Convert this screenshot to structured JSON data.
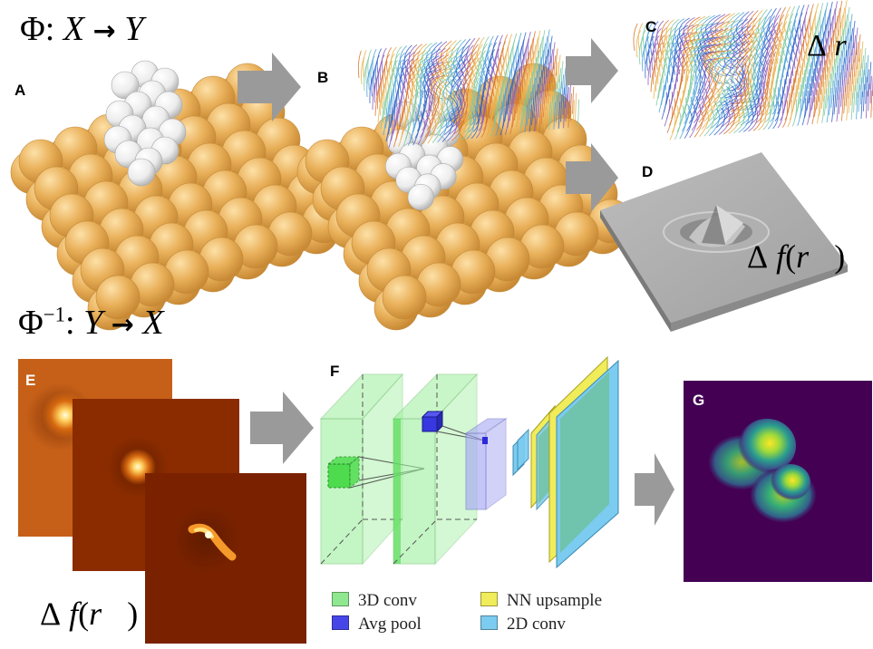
{
  "forward_map": {
    "phi": "Φ",
    "colon": ":",
    "x": "X",
    "arrow": "→",
    "y": "Y"
  },
  "inverse_map": {
    "phi": "Φ",
    "exp": "−1",
    "colon": ":",
    "y": "Y",
    "arrow": "→",
    "x": "X"
  },
  "panels": {
    "a": "A",
    "b": "B",
    "c": "C",
    "d": "D",
    "e": "E",
    "f": "F",
    "g": "G"
  },
  "delta_r": {
    "delta": "Δ",
    "r": "r⃗"
  },
  "delta_f": {
    "delta": "Δ",
    "f": "f",
    "open": "(",
    "r": "r⃗",
    "close": ")"
  },
  "legend": [
    {
      "label": "3D conv",
      "color": "#8fe88f"
    },
    {
      "label": "Avg pool",
      "color": "#4646e8"
    },
    {
      "label": "NN upsample",
      "color": "#f0ec5a"
    },
    {
      "label": "2D conv",
      "color": "#7ccbf0"
    }
  ],
  "colors": {
    "gold": "#e9b05a",
    "arrow": "#9a9a9a",
    "viridis_bg": "#440154"
  }
}
